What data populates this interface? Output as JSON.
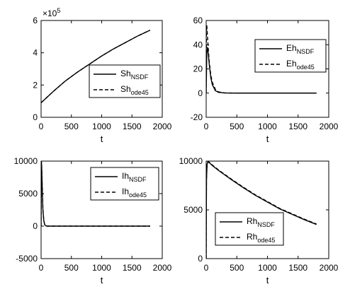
{
  "chart_data": [
    {
      "type": "line",
      "xlabel": "t",
      "ylabel": "",
      "xlim": [
        0,
        2000
      ],
      "ylim": [
        0,
        6
      ],
      "x_ticks": [
        "0",
        "500",
        "1000",
        "1500",
        "2000"
      ],
      "y_ticks": [
        "0",
        "2",
        "4",
        "6"
      ],
      "y_exponent": "×10",
      "y_exponent_power": "5",
      "legend_position": "center-right",
      "series": [
        {
          "name": "Sh",
          "sub": "NSDF",
          "style": "solid",
          "x": [
            0,
            200,
            400,
            600,
            800,
            1000,
            1200,
            1400,
            1600,
            1800
          ],
          "y": [
            0.9,
            1.6,
            2.25,
            2.8,
            3.3,
            3.8,
            4.25,
            4.65,
            5.05,
            5.4
          ]
        },
        {
          "name": "Sh",
          "sub": "ode45",
          "style": "dashed",
          "x": [
            0,
            200,
            400,
            600,
            800,
            1000,
            1200,
            1400,
            1600,
            1800
          ],
          "y": [
            0.9,
            1.6,
            2.25,
            2.8,
            3.3,
            3.8,
            4.25,
            4.65,
            5.05,
            5.4
          ]
        }
      ]
    },
    {
      "type": "line",
      "xlabel": "t",
      "ylabel": "",
      "xlim": [
        0,
        2000
      ],
      "ylim": [
        -20,
        60
      ],
      "x_ticks": [
        "0",
        "500",
        "1000",
        "1500",
        "2000"
      ],
      "y_ticks": [
        "-20",
        "0",
        "20",
        "40",
        "60"
      ],
      "legend_position": "top-right",
      "series": [
        {
          "name": "Eh",
          "sub": "NSDF",
          "style": "solid",
          "x": [
            0,
            10,
            20,
            35,
            50,
            75,
            100,
            150,
            200,
            300,
            500,
            1000,
            1500,
            1800
          ],
          "y": [
            0,
            33,
            38,
            32,
            24,
            13,
            7,
            2,
            0.6,
            0.1,
            0,
            0,
            0,
            0
          ]
        },
        {
          "name": "Eh",
          "sub": "ode45",
          "style": "dashed",
          "x": [
            0,
            5,
            10,
            20,
            35,
            50,
            75,
            100,
            150,
            200,
            300,
            500,
            1000,
            1500,
            1800
          ],
          "y": [
            0,
            50,
            56,
            48,
            36,
            26,
            15,
            9,
            3,
            1,
            0.2,
            0,
            0,
            0,
            0
          ]
        }
      ]
    },
    {
      "type": "line",
      "xlabel": "t",
      "ylabel": "",
      "xlim": [
        0,
        2000
      ],
      "ylim": [
        -5000,
        10000
      ],
      "x_ticks": [
        "0",
        "500",
        "1000",
        "1500",
        "2000"
      ],
      "y_ticks": [
        "-5000",
        "0",
        "5000",
        "10000"
      ],
      "legend_position": "top-right",
      "series": [
        {
          "name": "Ih",
          "sub": "NSDF",
          "style": "solid",
          "x": [
            0,
            5,
            10,
            20,
            30,
            45,
            60,
            80,
            100,
            200,
            500,
            1000,
            1500,
            1800
          ],
          "y": [
            0,
            9900,
            9000,
            5500,
            2500,
            800,
            200,
            30,
            0,
            0,
            0,
            0,
            0,
            0
          ]
        },
        {
          "name": "Ih",
          "sub": "ode45",
          "style": "dashed",
          "x": [
            0,
            5,
            10,
            20,
            30,
            45,
            60,
            80,
            100,
            200,
            500,
            1000,
            1500,
            1800
          ],
          "y": [
            0,
            9950,
            9100,
            5700,
            2600,
            850,
            220,
            35,
            0,
            0,
            0,
            0,
            0,
            0
          ]
        }
      ]
    },
    {
      "type": "line",
      "xlabel": "t",
      "ylabel": "",
      "xlim": [
        0,
        2000
      ],
      "ylim": [
        0,
        10000
      ],
      "x_ticks": [
        "0",
        "500",
        "1000",
        "1500",
        "2000"
      ],
      "y_ticks": [
        "0",
        "5000",
        "10000"
      ],
      "legend_position": "bottom-right",
      "series": [
        {
          "name": "Rh",
          "sub": "NSDF",
          "style": "solid",
          "x": [
            0,
            5,
            15,
            30,
            50,
            100,
            200,
            400,
            600,
            800,
            1000,
            1200,
            1400,
            1600,
            1800
          ],
          "y": [
            0,
            8000,
            9700,
            9900,
            9850,
            9550,
            9050,
            8150,
            7300,
            6500,
            5800,
            5100,
            4550,
            4000,
            3500
          ]
        },
        {
          "name": "Rh",
          "sub": "ode45",
          "style": "dashed",
          "x": [
            0,
            5,
            15,
            30,
            50,
            100,
            200,
            400,
            600,
            800,
            1000,
            1200,
            1400,
            1600,
            1800
          ],
          "y": [
            0,
            8300,
            9800,
            9950,
            9900,
            9600,
            9100,
            8200,
            7350,
            6550,
            5850,
            5150,
            4600,
            4050,
            3550
          ]
        }
      ]
    }
  ]
}
